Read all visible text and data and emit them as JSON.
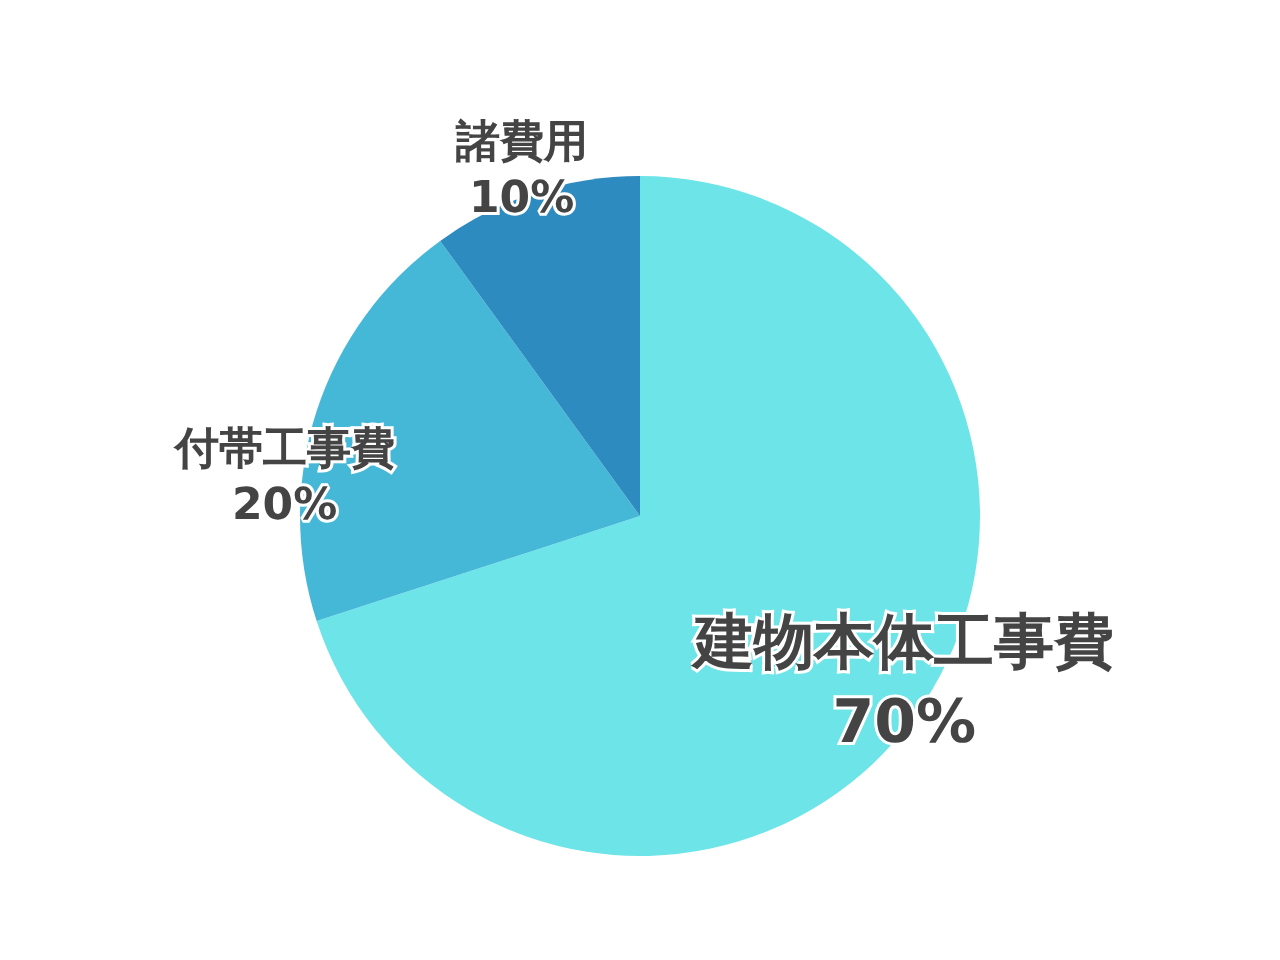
{
  "chart_data": {
    "type": "pie",
    "categories": [
      "建物本体工事費",
      "付帯工事費",
      "諸費用"
    ],
    "values": [
      70,
      20,
      10
    ],
    "colors": [
      "#6ce4e8",
      "#45b8d8",
      "#2e8bbf"
    ],
    "value_labels": [
      "70%",
      "20%",
      "10%"
    ],
    "legend": false
  }
}
